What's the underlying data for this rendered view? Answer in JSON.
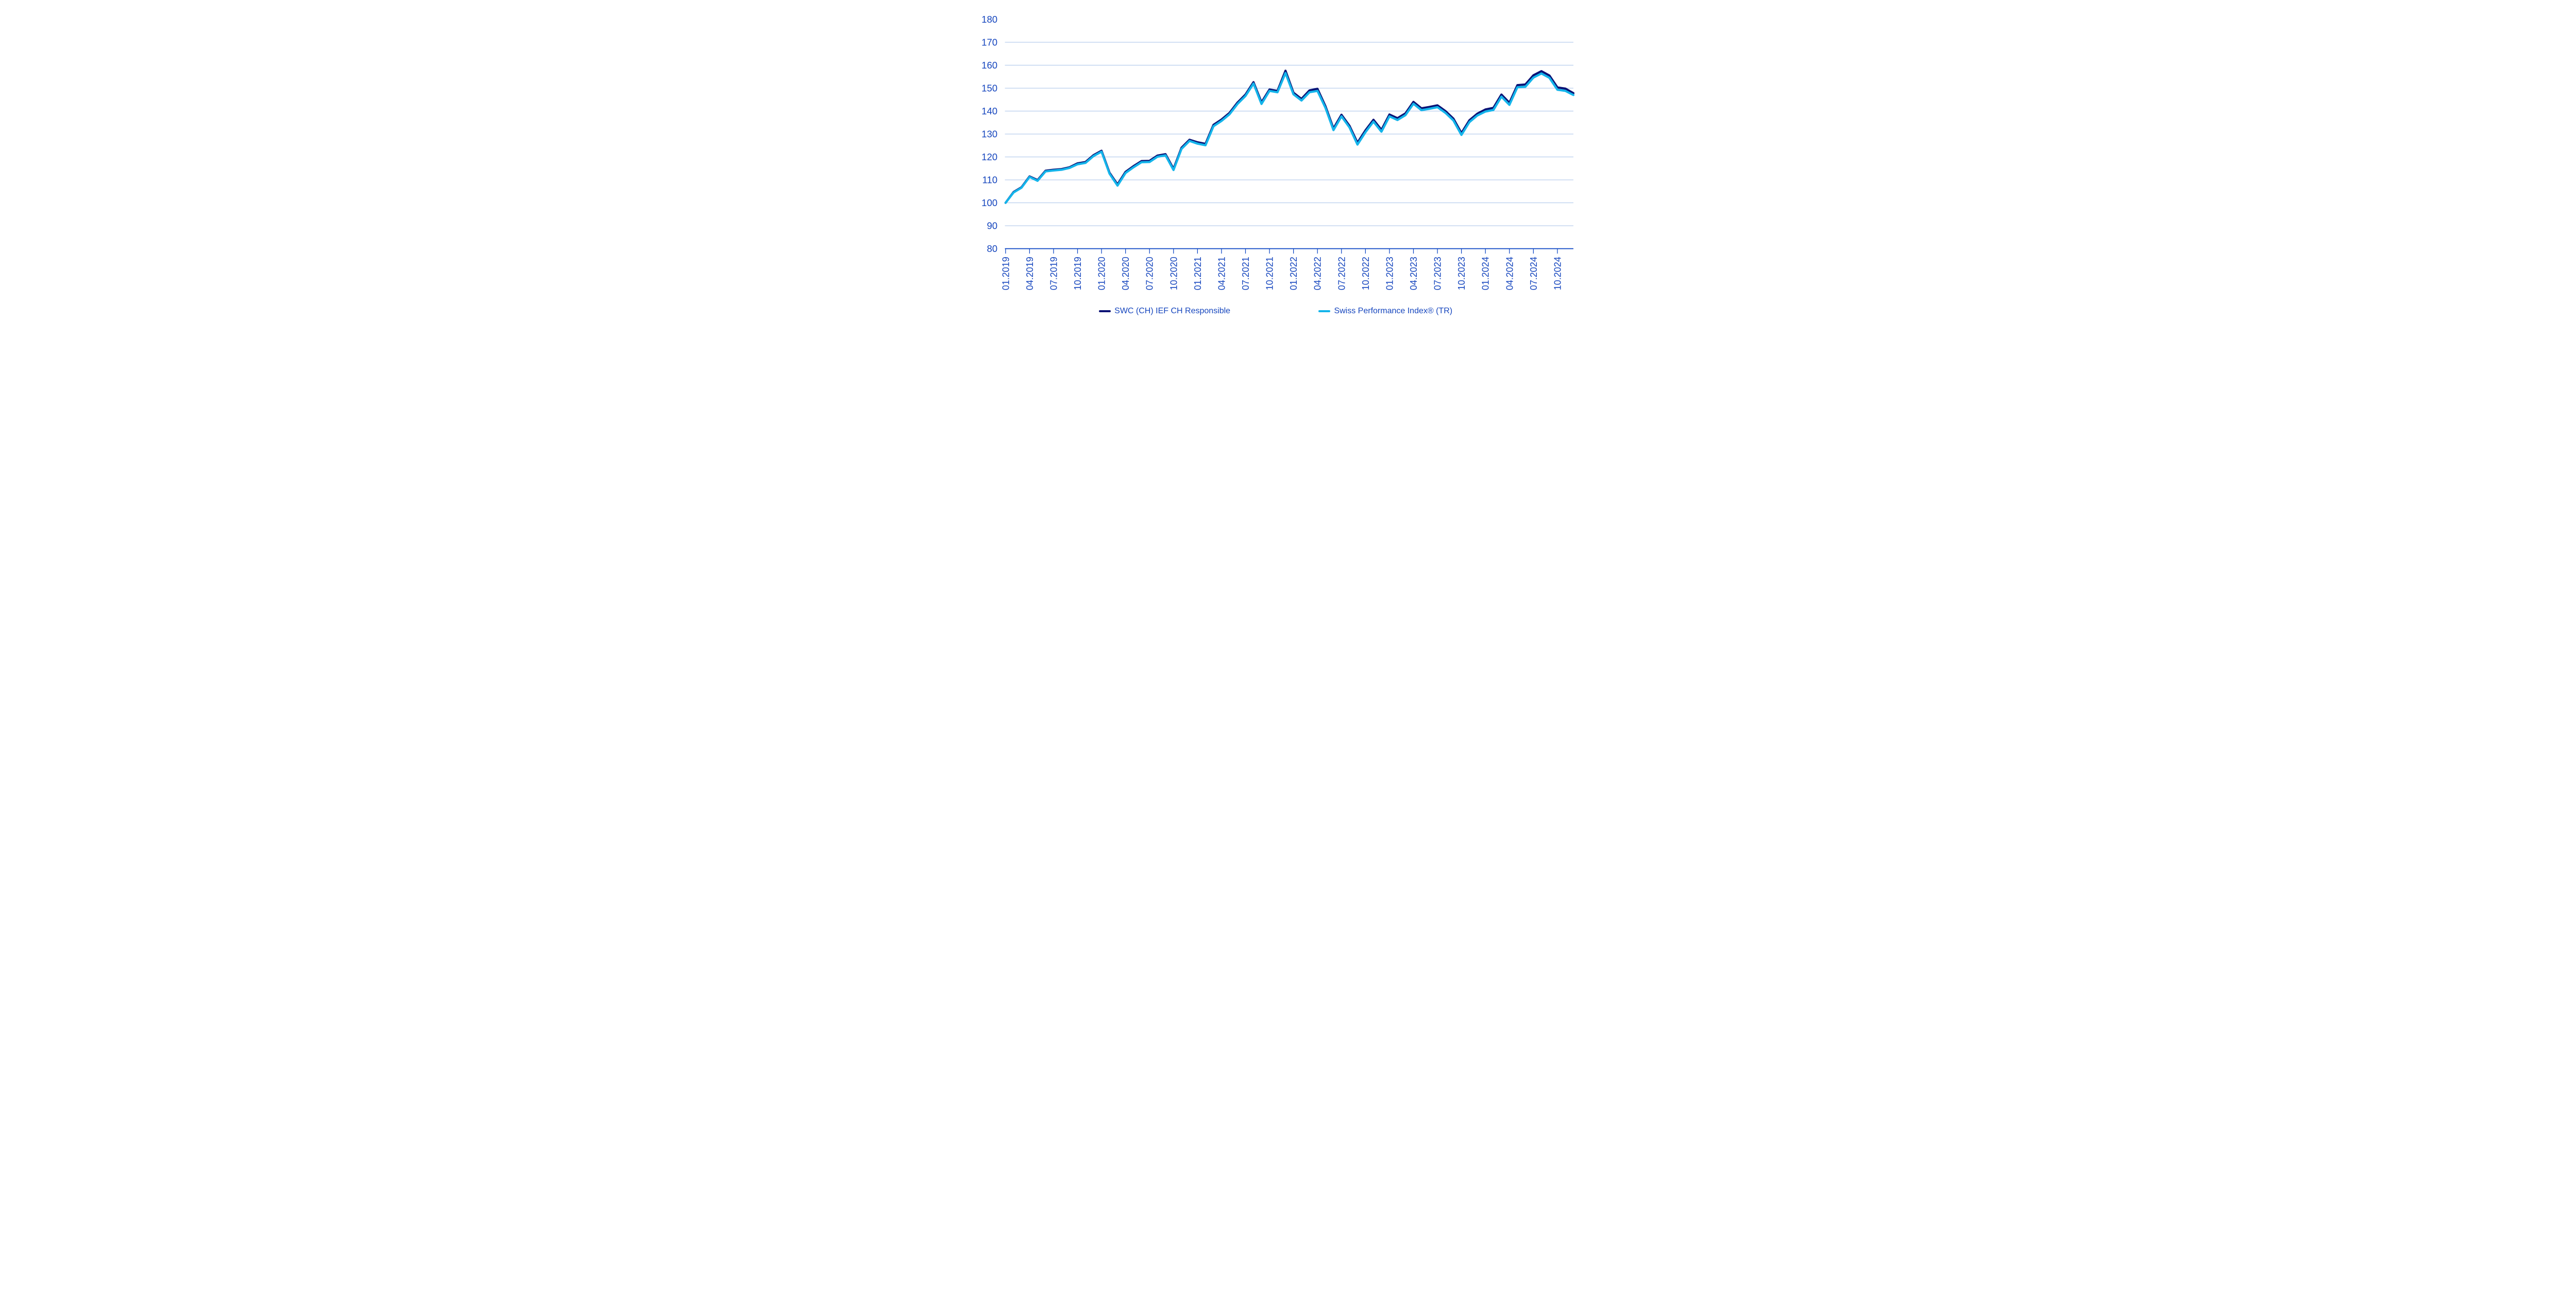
{
  "chart_data": {
    "type": "line",
    "title": "",
    "xlabel": "",
    "ylabel": "",
    "ylim": [
      80,
      180
    ],
    "yticks": [
      80,
      90,
      100,
      110,
      120,
      130,
      140,
      150,
      160,
      170,
      180
    ],
    "grid": "horizontal gridlines at 90-170, axis line at 80, no top/right border",
    "legend_position": "bottom",
    "x_tick_interval_months": 3,
    "x": [
      "01.2019",
      "02.2019",
      "03.2019",
      "04.2019",
      "05.2019",
      "06.2019",
      "07.2019",
      "08.2019",
      "09.2019",
      "10.2019",
      "11.2019",
      "12.2019",
      "01.2020",
      "02.2020",
      "03.2020",
      "04.2020",
      "05.2020",
      "06.2020",
      "07.2020",
      "08.2020",
      "09.2020",
      "10.2020",
      "11.2020",
      "12.2020",
      "01.2021",
      "02.2021",
      "03.2021",
      "04.2021",
      "05.2021",
      "06.2021",
      "07.2021",
      "08.2021",
      "09.2021",
      "10.2021",
      "11.2021",
      "12.2021",
      "01.2022",
      "02.2022",
      "03.2022",
      "04.2022",
      "05.2022",
      "06.2022",
      "07.2022",
      "08.2022",
      "09.2022",
      "10.2022",
      "11.2022",
      "12.2022",
      "01.2023",
      "02.2023",
      "03.2023",
      "04.2023",
      "05.2023",
      "06.2023",
      "07.2023",
      "08.2023",
      "09.2023",
      "10.2023",
      "11.2023",
      "12.2023",
      "01.2024",
      "02.2024",
      "03.2024",
      "04.2024",
      "05.2024",
      "06.2024",
      "07.2024",
      "08.2024",
      "09.2024",
      "10.2024",
      "11.2024",
      "12.2024"
    ],
    "series": [
      {
        "name": "SWC (CH) IEF CH Responsible",
        "color": "#0A1275",
        "values": [
          100.0,
          104.7,
          106.8,
          111.5,
          109.9,
          114.0,
          114.4,
          114.7,
          115.5,
          117.2,
          117.8,
          120.8,
          122.7,
          113.1,
          108.0,
          113.5,
          116.0,
          118.2,
          118.3,
          120.6,
          121.2,
          114.8,
          124.0,
          127.5,
          126.4,
          125.7,
          134.0,
          136.3,
          139.2,
          143.7,
          147.2,
          152.6,
          143.8,
          149.4,
          148.8,
          157.6,
          148.0,
          145.3,
          149.0,
          149.7,
          142.1,
          132.4,
          138.4,
          133.6,
          126.2,
          131.6,
          136.2,
          131.8,
          138.5,
          136.9,
          139.0,
          144.0,
          141.2,
          141.8,
          142.5,
          140.0,
          136.7,
          130.4,
          136.0,
          138.9,
          140.7,
          141.4,
          147.2,
          143.6,
          151.3,
          151.6,
          155.6,
          157.4,
          155.5,
          150.3,
          149.8,
          147.8
        ]
      },
      {
        "name": "Swiss Performance Index® (TR)",
        "color": "#14B4EA",
        "values": [
          100.0,
          104.5,
          106.6,
          111.3,
          109.6,
          113.7,
          114.1,
          114.4,
          115.2,
          116.8,
          117.4,
          120.4,
          122.3,
          112.7,
          107.5,
          113.0,
          115.5,
          117.7,
          117.8,
          120.1,
          120.7,
          114.3,
          123.5,
          127.0,
          125.8,
          125.1,
          133.4,
          135.7,
          138.6,
          143.1,
          146.6,
          152.0,
          143.1,
          148.8,
          148.2,
          156.6,
          147.3,
          144.6,
          148.2,
          148.8,
          141.4,
          131.7,
          137.7,
          132.9,
          125.4,
          130.8,
          135.4,
          131.0,
          137.7,
          136.1,
          138.2,
          143.2,
          140.4,
          141.0,
          141.7,
          139.2,
          135.9,
          129.6,
          135.2,
          138.1,
          139.8,
          140.5,
          146.3,
          142.7,
          150.4,
          150.6,
          154.6,
          156.4,
          154.5,
          149.3,
          148.8,
          147.0
        ]
      }
    ]
  },
  "legend": {
    "series1_label": "SWC (CH) IEF CH Responsible",
    "series2_label": "Swiss Performance Index® (TR)"
  },
  "colors": {
    "swc_line": "#0A1275",
    "spi_line": "#14B4EA",
    "axis_line": "#0B45C4",
    "tick_mark": "#0B45C4",
    "label_text": "#1646BE",
    "gridline": "#A6C1E8",
    "background": "#FFFFFF"
  }
}
